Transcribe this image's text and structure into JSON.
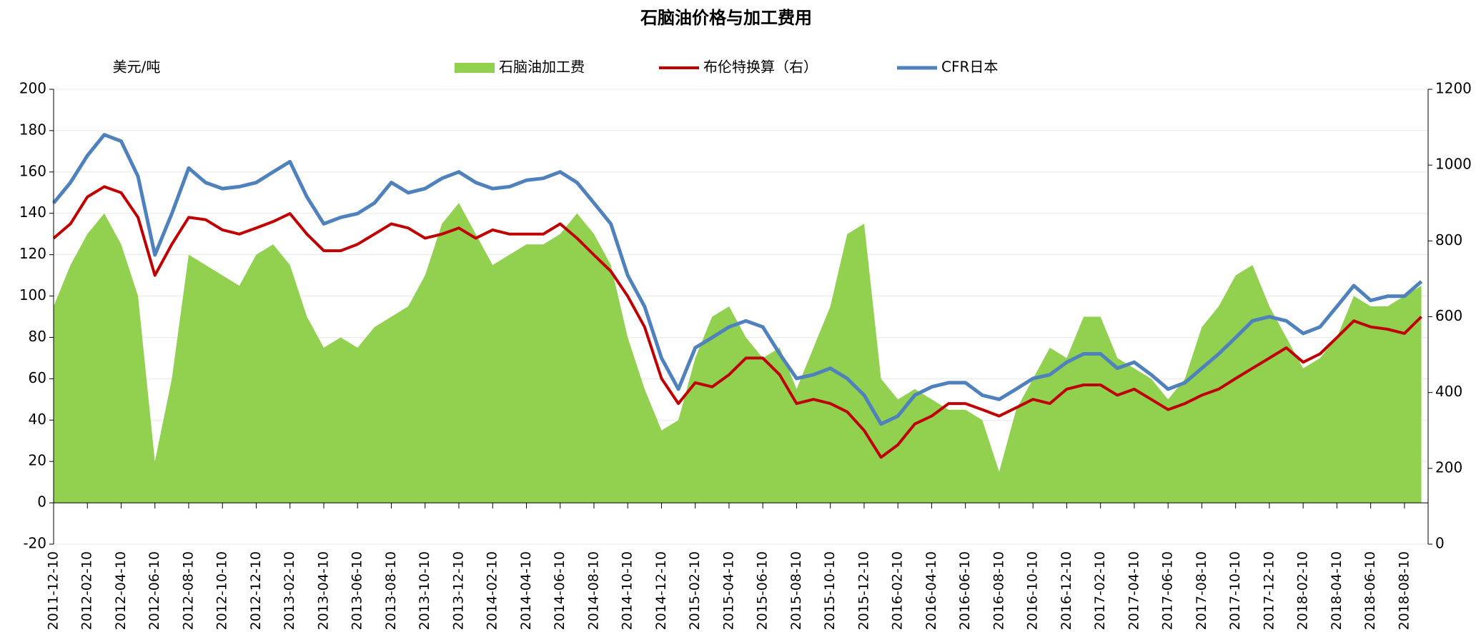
{
  "chart_data": {
    "type": "area-line",
    "title": "石脑油价格与加工费用",
    "y_label": "美元/吨",
    "categories": [
      "2011-12-10",
      null,
      "2012-02-10",
      null,
      "2012-04-10",
      null,
      "2012-06-10",
      null,
      "2012-08-10",
      null,
      "2012-10-10",
      null,
      "2012-12-10",
      null,
      "2013-02-10",
      null,
      "2013-04-10",
      null,
      "2013-06-10",
      null,
      "2013-08-10",
      null,
      "2013-10-10",
      null,
      "2013-12-10",
      null,
      "2014-02-10",
      null,
      "2014-04-10",
      null,
      "2014-06-10",
      null,
      "2014-08-10",
      null,
      "2014-10-10",
      null,
      "2014-12-10",
      null,
      "2015-02-10",
      null,
      "2015-04-10",
      null,
      "2015-06-10",
      null,
      "2015-08-10",
      null,
      "2015-10-10",
      null,
      "2015-12-10",
      null,
      "2016-02-10",
      null,
      "2016-04-10",
      null,
      "2016-06-10",
      null,
      "2016-08-10",
      null,
      "2016-10-10",
      null,
      "2016-12-10",
      null,
      "2017-02-10",
      null,
      "2017-04-10",
      null,
      "2017-06-10",
      null,
      "2017-08-10",
      null,
      "2017-10-10",
      null,
      "2017-12-10",
      null,
      "2018-02-10",
      null,
      "2018-04-10",
      null,
      "2018-06-10",
      null,
      "2018-08-10",
      null
    ],
    "series": [
      {
        "name": "石脑油加工费",
        "color": "#92d050",
        "kind": "area",
        "values": [
          95,
          115,
          130,
          140,
          125,
          100,
          20,
          60,
          120,
          115,
          110,
          105,
          120,
          125,
          115,
          90,
          75,
          80,
          75,
          85,
          90,
          95,
          110,
          135,
          145,
          130,
          115,
          120,
          125,
          125,
          130,
          140,
          130,
          115,
          80,
          55,
          35,
          40,
          70,
          90,
          95,
          80,
          70,
          75,
          55,
          75,
          95,
          130,
          135,
          60,
          50,
          55,
          50,
          45,
          45,
          40,
          15,
          45,
          60,
          75,
          70,
          90,
          90,
          70,
          65,
          60,
          50,
          60,
          85,
          95,
          110,
          115,
          95,
          80,
          65,
          70,
          80,
          100,
          95,
          95,
          100,
          105
        ]
      },
      {
        "name": "布伦特换算（右）",
        "color": "#c00000",
        "kind": "line",
        "axis": "y2",
        "values": [
          807,
          845,
          916,
          943,
          927,
          862,
          709,
          791,
          862,
          856,
          829,
          818,
          834,
          851,
          872,
          818,
          774,
          774,
          791,
          818,
          845,
          834,
          807,
          818,
          834,
          807,
          829,
          818,
          818,
          818,
          845,
          807,
          763,
          720,
          654,
          573,
          437,
          371,
          426,
          415,
          447,
          491,
          491,
          447,
          371,
          382,
          371,
          349,
          300,
          229,
          262,
          317,
          338,
          371,
          371,
          355,
          338,
          360,
          382,
          371,
          409,
          420,
          420,
          393,
          409,
          382,
          355,
          371,
          393,
          409,
          437,
          464,
          491,
          518,
          480,
          502,
          545,
          589,
          573,
          567,
          556,
          600
        ]
      },
      {
        "name": "CFR日本",
        "color": "#4f81bd",
        "kind": "line",
        "axis": "y2",
        "values": [
          900,
          954,
          1025,
          1080,
          1063,
          970,
          763,
          872,
          992,
          954,
          938,
          943,
          954,
          982,
          1009,
          916,
          845,
          862,
          872,
          900,
          954,
          927,
          938,
          965,
          982,
          954,
          938,
          943,
          960,
          965,
          982,
          954,
          900,
          845,
          709,
          627,
          491,
          409,
          518,
          545,
          573,
          589,
          573,
          502,
          437,
          447,
          464,
          437,
          393,
          317,
          338,
          393,
          415,
          426,
          426,
          393,
          382,
          409,
          437,
          447,
          480,
          502,
          502,
          464,
          480,
          447,
          409,
          426,
          464,
          502,
          545,
          589,
          600,
          589,
          556,
          573,
          627,
          682,
          643,
          654,
          654,
          693
        ]
      }
    ],
    "ylim": [
      -20,
      200
    ],
    "yticks": [
      -20,
      0,
      20,
      40,
      60,
      80,
      100,
      120,
      140,
      160,
      180,
      200
    ],
    "y2lim": [
      0,
      1200
    ],
    "y2ticks": [
      0,
      200,
      400,
      600,
      800,
      1000,
      1200
    ],
    "grid": true
  }
}
